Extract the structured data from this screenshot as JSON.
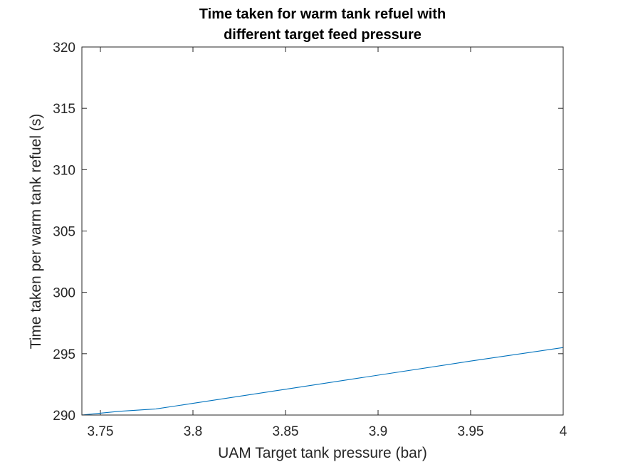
{
  "chart_data": {
    "type": "line",
    "title": [
      "Time taken for warm tank refuel with",
      "different target feed pressure"
    ],
    "xlabel": "UAM Target tank pressure (bar)",
    "ylabel": "Time taken per warm tank refuel (s)",
    "xlim": [
      3.74,
      4.0
    ],
    "ylim": [
      290,
      320
    ],
    "xticks": [
      3.75,
      3.8,
      3.85,
      3.9,
      3.95,
      4.0
    ],
    "xtick_labels": [
      "3.75",
      "3.8",
      "3.85",
      "3.9",
      "3.95",
      "4"
    ],
    "yticks": [
      290,
      295,
      300,
      305,
      310,
      315,
      320
    ],
    "ytick_labels": [
      "290",
      "295",
      "300",
      "305",
      "310",
      "315",
      "320"
    ],
    "grid": false,
    "series": [
      {
        "color": "#0072bd",
        "x": [
          3.74,
          3.76,
          3.78,
          3.8,
          3.85,
          3.9,
          3.95,
          4.0
        ],
        "y": [
          290.0,
          290.3,
          290.5,
          290.95,
          292.1,
          293.25,
          294.4,
          295.5
        ]
      }
    ]
  }
}
